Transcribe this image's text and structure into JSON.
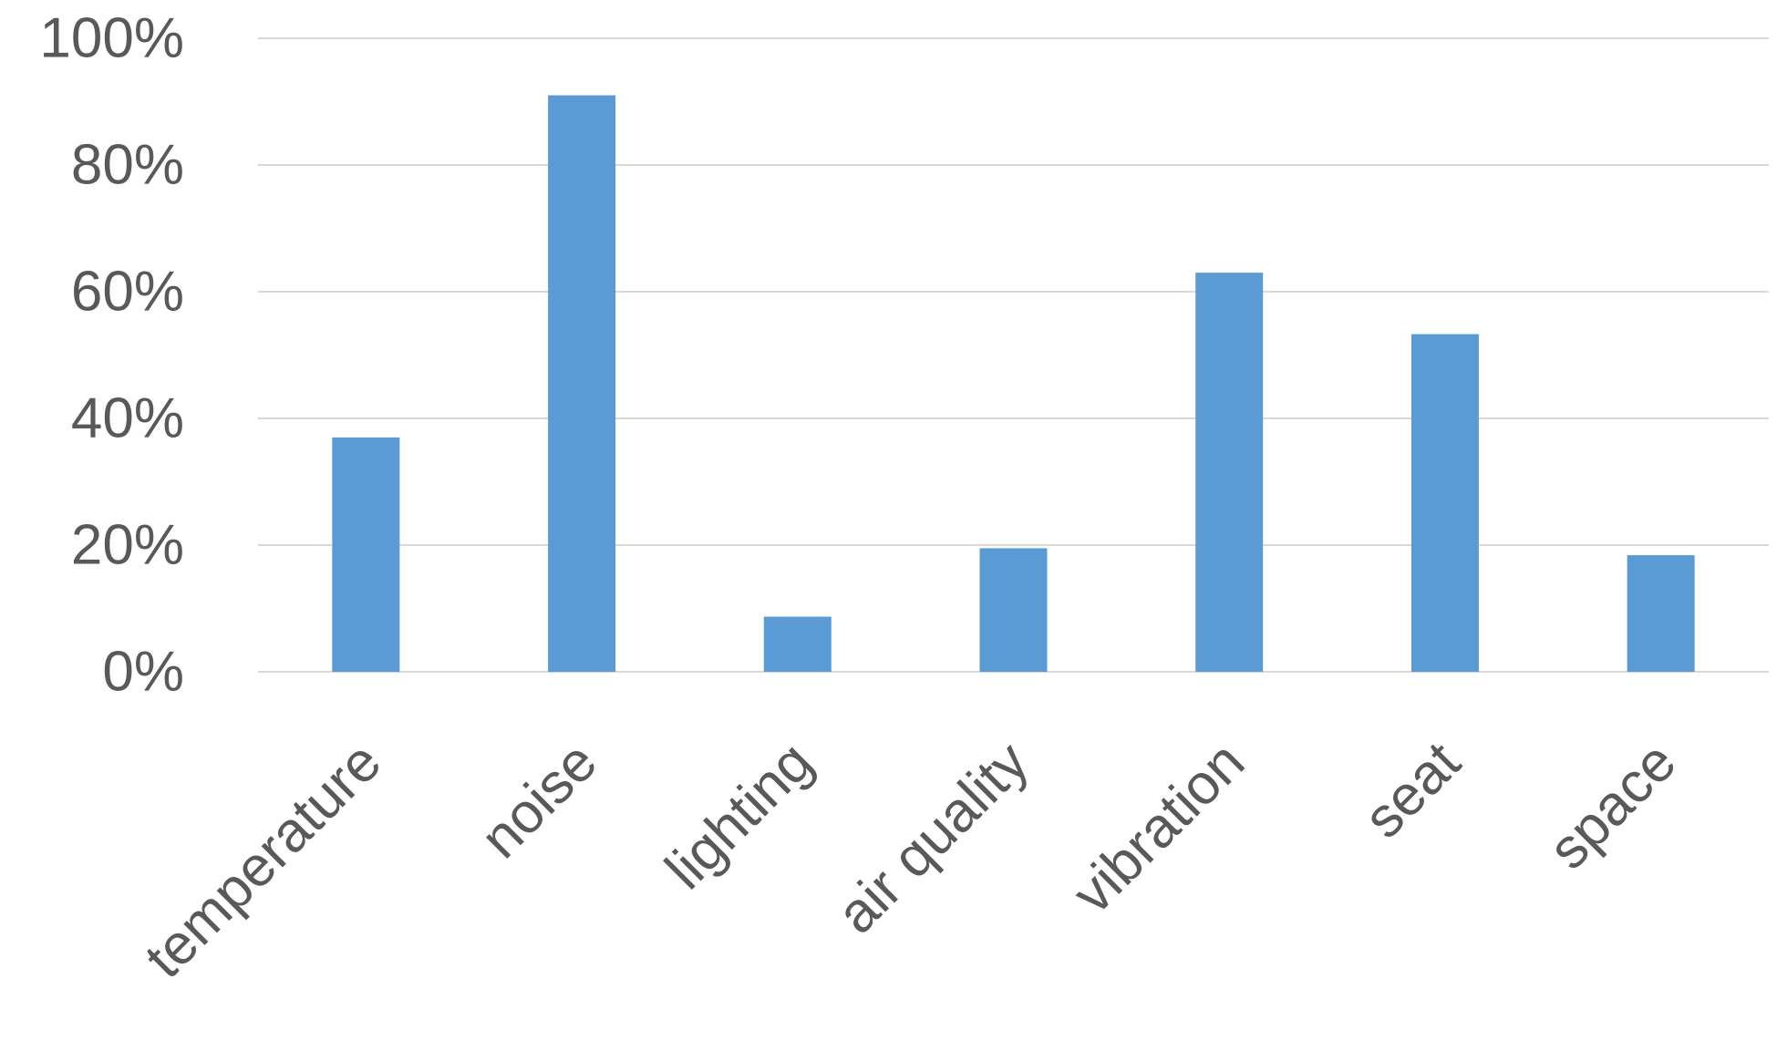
{
  "chart_data": {
    "type": "bar",
    "title": "",
    "xlabel": "",
    "ylabel": "",
    "categories": [
      "temperature",
      "noise",
      "lighting",
      "air quality",
      "vibration",
      "seat",
      "space"
    ],
    "values": [
      37,
      91,
      8.7,
      19.5,
      63,
      53.3,
      18.4
    ],
    "y_unit": "%",
    "ylim": [
      0,
      100
    ],
    "y_ticks": [
      0,
      20,
      40,
      60,
      80,
      100
    ],
    "y_tick_labels": [
      "0%",
      "20%",
      "40%",
      "60%",
      "80%",
      "100%"
    ],
    "grid": true,
    "legend": "none",
    "colors": {
      "bar": "#5b9bd5",
      "grid": "#d9d9d9",
      "tick_text": "#595959"
    }
  }
}
